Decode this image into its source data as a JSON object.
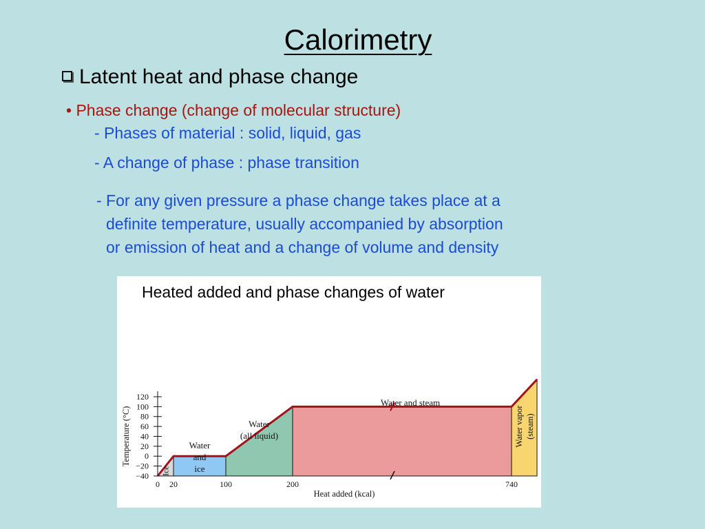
{
  "slide": {
    "title": "Calorimetry",
    "bullet": "Latent heat and phase change",
    "sub_bullet": "• Phase change (change of molecular structure)",
    "items": [
      "- Phases of material : solid, liquid, gas",
      "- A change of phase : phase transition"
    ],
    "paragraph": [
      "- For any given pressure a phase change takes place at a",
      "definite temperature, usually accompanied by absorption",
      "or emission of heat and a change of volume and density"
    ]
  },
  "figure": {
    "caption": "Heated added and phase changes of water"
  },
  "colors": {
    "background": "#bde0e3",
    "red_text": "#a8150f",
    "blue_text": "#1a4bd6",
    "curve": "#a3121a"
  },
  "chart_data": {
    "type": "line",
    "title": "",
    "xlabel": "Heat added (kcal)",
    "ylabel": "Temperature (°C)",
    "xticks": [
      0,
      20,
      100,
      200,
      740
    ],
    "yticks": [
      -40,
      -20,
      0,
      20,
      40,
      60,
      80,
      100,
      120
    ],
    "ylim": [
      -40,
      120
    ],
    "series": [
      {
        "x": [
          0,
          20,
          100,
          200,
          740,
          780
        ],
        "y": [
          -40,
          0,
          0,
          100,
          100,
          155
        ]
      }
    ],
    "regions": [
      {
        "label": "Ice",
        "x_range": [
          0,
          20
        ],
        "color": "#d9d9d9"
      },
      {
        "label": "Water and ice",
        "x_range": [
          20,
          100
        ],
        "color": "#90c8f4"
      },
      {
        "label": "Water (all liquid)",
        "x_range": [
          100,
          200
        ],
        "color": "#90c7b0"
      },
      {
        "label": "Water and steam",
        "x_range": [
          200,
          740
        ],
        "color": "#eb9b9b"
      },
      {
        "label": "Water vapor (steam)",
        "x_range": [
          740,
          780
        ],
        "color": "#f8d56e"
      }
    ]
  }
}
